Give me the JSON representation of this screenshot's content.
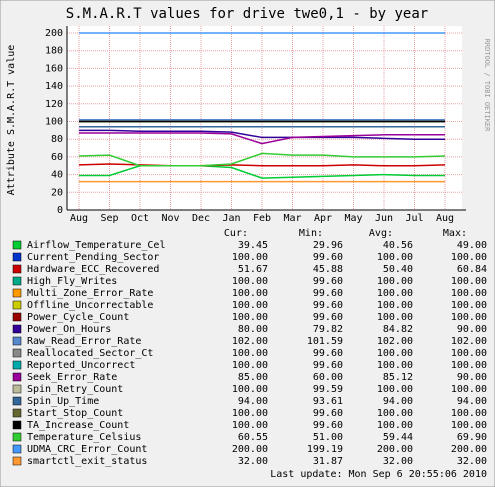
{
  "chart_data": {
    "type": "line",
    "title": "S.M.A.R.T values for drive twe0,1 - by year",
    "y_label": "Attribute S.M.A.R.T value",
    "watermark": "RRDTOOL / TOBI OETIKER",
    "footer": "Last update: Mon Sep  6 20:55:06 2010",
    "categories": [
      "Aug",
      "Sep",
      "Oct",
      "Nov",
      "Dec",
      "Jan",
      "Feb",
      "Mar",
      "Apr",
      "May",
      "Jun",
      "Jul",
      "Aug"
    ],
    "ylim": [
      0,
      200
    ],
    "yticks": [
      0,
      20,
      40,
      60,
      80,
      100,
      120,
      140,
      160,
      180,
      200
    ],
    "grid": true,
    "legend_columns": [
      "Cur:",
      "Min:",
      "Avg:",
      "Max:"
    ],
    "series": [
      {
        "name": "Airflow_Temperature_Cel",
        "color": "#00cc33",
        "values": [
          39,
          39,
          50,
          50,
          50,
          48,
          36,
          37,
          38,
          39,
          40,
          39,
          39
        ],
        "stats": [
          "39.45",
          "29.96",
          "40.56",
          "49.00"
        ]
      },
      {
        "name": "Current_Pending_Sector",
        "color": "#0033cc",
        "values": [
          100,
          100,
          100,
          100,
          100,
          100,
          100,
          100,
          100,
          100,
          100,
          100,
          100
        ],
        "stats": [
          "100.00",
          "99.60",
          "100.00",
          "100.00"
        ]
      },
      {
        "name": "Hardware_ECC_Recovered",
        "color": "#cc0000",
        "values": [
          51,
          52,
          51,
          50,
          50,
          51,
          50,
          50,
          50,
          51,
          50,
          50,
          51
        ],
        "stats": [
          "51.67",
          "45.88",
          "50.40",
          "60.84"
        ]
      },
      {
        "name": "High_Fly_Writes",
        "color": "#00aa88",
        "values": [
          100,
          100,
          100,
          100,
          100,
          100,
          100,
          100,
          100,
          100,
          100,
          100,
          100
        ],
        "stats": [
          "100.00",
          "99.60",
          "100.00",
          "100.00"
        ]
      },
      {
        "name": "Multi_Zone_Error_Rate",
        "color": "#ff9900",
        "values": [
          100,
          100,
          100,
          100,
          100,
          100,
          100,
          100,
          100,
          100,
          100,
          100,
          100
        ],
        "stats": [
          "100.00",
          "99.60",
          "100.00",
          "100.00"
        ]
      },
      {
        "name": "Offline_Uncorrectable",
        "color": "#cccc00",
        "values": [
          100,
          100,
          100,
          100,
          100,
          100,
          100,
          100,
          100,
          100,
          100,
          100,
          100
        ],
        "stats": [
          "100.00",
          "99.60",
          "100.00",
          "100.00"
        ]
      },
      {
        "name": "Power_Cycle_Count",
        "color": "#990000",
        "values": [
          100,
          100,
          100,
          100,
          100,
          100,
          100,
          100,
          100,
          100,
          100,
          100,
          100
        ],
        "stats": [
          "100.00",
          "99.60",
          "100.00",
          "100.00"
        ]
      },
      {
        "name": "Power_On_Hours",
        "color": "#330099",
        "values": [
          90,
          90,
          89,
          89,
          89,
          88,
          82,
          82,
          82,
          82,
          81,
          80,
          80
        ],
        "stats": [
          "80.00",
          "79.82",
          "84.82",
          "90.00"
        ]
      },
      {
        "name": "Raw_Read_Error_Rate",
        "color": "#5588cc",
        "values": [
          102,
          102,
          102,
          102,
          102,
          102,
          102,
          102,
          102,
          102,
          102,
          102,
          102
        ],
        "stats": [
          "102.00",
          "101.59",
          "102.00",
          "102.00"
        ]
      },
      {
        "name": "Reallocated_Sector_Ct",
        "color": "#888888",
        "values": [
          100,
          100,
          100,
          100,
          100,
          100,
          100,
          100,
          100,
          100,
          100,
          100,
          100
        ],
        "stats": [
          "100.00",
          "99.60",
          "100.00",
          "100.00"
        ]
      },
      {
        "name": "Reported_Uncorrect",
        "color": "#00aaaa",
        "values": [
          100,
          100,
          100,
          100,
          100,
          100,
          100,
          100,
          100,
          100,
          100,
          100,
          100
        ],
        "stats": [
          "100.00",
          "99.60",
          "100.00",
          "100.00"
        ]
      },
      {
        "name": "Seek_Error_Rate",
        "color": "#990099",
        "values": [
          87,
          87,
          87,
          87,
          87,
          86,
          75,
          82,
          83,
          84,
          85,
          85,
          85
        ],
        "stats": [
          "85.00",
          "60.00",
          "85.12",
          "90.00"
        ]
      },
      {
        "name": "Spin_Retry_Count",
        "color": "#bbbb99",
        "values": [
          100,
          100,
          100,
          100,
          100,
          100,
          100,
          100,
          100,
          100,
          100,
          100,
          100
        ],
        "stats": [
          "100.00",
          "99.59",
          "100.00",
          "100.00"
        ]
      },
      {
        "name": "Spin_Up_Time",
        "color": "#336699",
        "values": [
          94,
          94,
          94,
          94,
          94,
          94,
          94,
          94,
          94,
          94,
          94,
          94,
          94
        ],
        "stats": [
          "94.00",
          "93.61",
          "94.00",
          "94.00"
        ]
      },
      {
        "name": "Start_Stop_Count",
        "color": "#666633",
        "values": [
          100,
          100,
          100,
          100,
          100,
          100,
          100,
          100,
          100,
          100,
          100,
          100,
          100
        ],
        "stats": [
          "100.00",
          "99.60",
          "100.00",
          "100.00"
        ]
      },
      {
        "name": "TA_Increase_Count",
        "color": "#000000",
        "values": [
          100,
          100,
          100,
          100,
          100,
          100,
          100,
          100,
          100,
          100,
          100,
          100,
          100
        ],
        "stats": [
          "100.00",
          "99.60",
          "100.00",
          "100.00"
        ]
      },
      {
        "name": "Temperature_Celsius",
        "color": "#33cc33",
        "values": [
          61,
          62,
          50,
          50,
          50,
          52,
          64,
          62,
          62,
          60,
          60,
          60,
          61
        ],
        "stats": [
          "60.55",
          "51.00",
          "59.44",
          "69.90"
        ]
      },
      {
        "name": "UDMA_CRC_Error_Count",
        "color": "#4499ff",
        "values": [
          200,
          200,
          200,
          200,
          200,
          200,
          200,
          200,
          200,
          200,
          200,
          200,
          200
        ],
        "stats": [
          "200.00",
          "199.19",
          "200.00",
          "200.00"
        ]
      },
      {
        "name": "smartctl_exit_status",
        "color": "#ff9933",
        "values": [
          32,
          32,
          32,
          32,
          32,
          32,
          32,
          32,
          32,
          32,
          32,
          32,
          32
        ],
        "stats": [
          "32.00",
          "31.87",
          "32.00",
          "32.00"
        ]
      }
    ]
  }
}
